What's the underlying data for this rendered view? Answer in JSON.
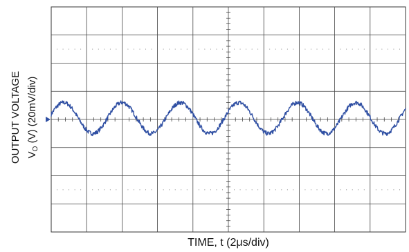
{
  "chart_data": {
    "type": "line",
    "title": "",
    "xlabel": "TIME, t (2μs/div)",
    "ylabel_line1": "OUTPUT VOLTAGE",
    "ylabel_line2_prefix": "V",
    "ylabel_line2_sub": "O",
    "ylabel_line2_suffix": " (V) (20mV/div)",
    "x_divisions": 10,
    "y_divisions": 8,
    "x_per_div_us": 2,
    "y_per_div_mv": 20,
    "xlim_us": [
      0,
      20
    ],
    "ylim_mv": [
      -80,
      80
    ],
    "grid": true,
    "trace_color": "#2f4fa3",
    "series": [
      {
        "waveform": "sine",
        "amplitude_mv": 11,
        "offset_mv": 1,
        "period_us": 3.3,
        "first_peak_us": 0.7,
        "noise_mv": 1.5
      }
    ],
    "marker": "ground-reference-arrow"
  }
}
